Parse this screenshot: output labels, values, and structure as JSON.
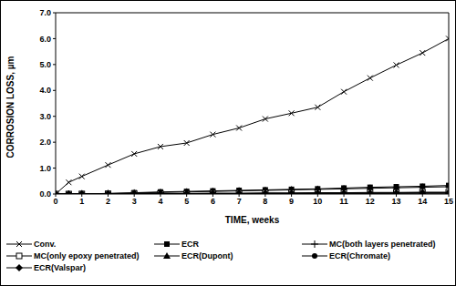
{
  "chart_data": {
    "type": "line",
    "x_label": "TIME, weeks",
    "y_label": "CORROSION LOSS, µm",
    "x": [
      0,
      0.5,
      1,
      2,
      3,
      4,
      5,
      6,
      7,
      8,
      9,
      10,
      11,
      12,
      13,
      14,
      15
    ],
    "xlim": [
      0,
      15
    ],
    "xticks": [
      0,
      1,
      2,
      3,
      4,
      5,
      6,
      7,
      8,
      9,
      10,
      11,
      12,
      13,
      14,
      15
    ],
    "ylim": [
      0,
      7
    ],
    "yticks": [
      {
        "value": 0,
        "label": "0.0"
      },
      {
        "value": 1,
        "label": "1.0"
      },
      {
        "value": 2,
        "label": "2.0"
      },
      {
        "value": 3,
        "label": "3.0"
      },
      {
        "value": 4,
        "label": "4.0"
      },
      {
        "value": 5,
        "label": "5.0"
      },
      {
        "value": 6,
        "label": "6.0"
      },
      {
        "value": 7,
        "label": "7.0"
      }
    ],
    "grid": false,
    "legend": "bottom",
    "series": [
      {
        "name": "Conv.",
        "color": "#000000",
        "marker": "x",
        "line_style": "solid",
        "values": [
          0,
          0.45,
          0.68,
          1.12,
          1.55,
          1.83,
          1.97,
          2.3,
          2.55,
          2.9,
          3.12,
          3.35,
          3.95,
          4.48,
          4.98,
          5.45,
          6.0
        ]
      },
      {
        "name": "ECR",
        "color": "#000000",
        "marker": "square",
        "line_style": "solid",
        "values": [
          0,
          0,
          0.01,
          0.02,
          0.05,
          0.08,
          0.1,
          0.12,
          0.14,
          0.16,
          0.18,
          0.2,
          0.23,
          0.26,
          0.28,
          0.3,
          0.33
        ]
      },
      {
        "name": "MC(both layers penetrated)",
        "color": "#000000",
        "marker": "plus",
        "line_style": "solid",
        "values": [
          0,
          0,
          0.01,
          0.02,
          0.04,
          0.06,
          0.08,
          0.1,
          0.12,
          0.14,
          0.16,
          0.18,
          0.2,
          0.22,
          0.24,
          0.26,
          0.28
        ]
      },
      {
        "name": "MC(only epoxy penetrated)",
        "color": "#000000",
        "marker": "open_square",
        "line_style": "solid",
        "values": [
          0,
          0,
          0,
          0.01,
          0.01,
          0.02,
          0.02,
          0.03,
          0.03,
          0.04,
          0.04,
          0.05,
          0.05,
          0.06,
          0.06,
          0.07,
          0.07
        ]
      },
      {
        "name": "ECR(Dupont)",
        "color": "#000000",
        "marker": "triangle",
        "line_style": "solid",
        "values": [
          0,
          0,
          0,
          0.01,
          0.01,
          0.01,
          0.02,
          0.02,
          0.02,
          0.03,
          0.03,
          0.03,
          0.04,
          0.04,
          0.04,
          0.05,
          0.05
        ]
      },
      {
        "name": "ECR(Chromate)",
        "color": "#000000",
        "marker": "circle",
        "line_style": "solid",
        "values": [
          0,
          0,
          0,
          0.01,
          0.01,
          0.01,
          0.01,
          0.02,
          0.02,
          0.02,
          0.02,
          0.03,
          0.03,
          0.03,
          0.03,
          0.04,
          0.04
        ]
      },
      {
        "name": "ECR(Valspar)",
        "color": "#000000",
        "marker": "diamond",
        "line_style": "solid",
        "values": [
          0,
          0,
          0,
          0,
          0.01,
          0.01,
          0.01,
          0.01,
          0.01,
          0.02,
          0.02,
          0.02,
          0.02,
          0.02,
          0.03,
          0.03,
          0.03
        ]
      }
    ]
  }
}
